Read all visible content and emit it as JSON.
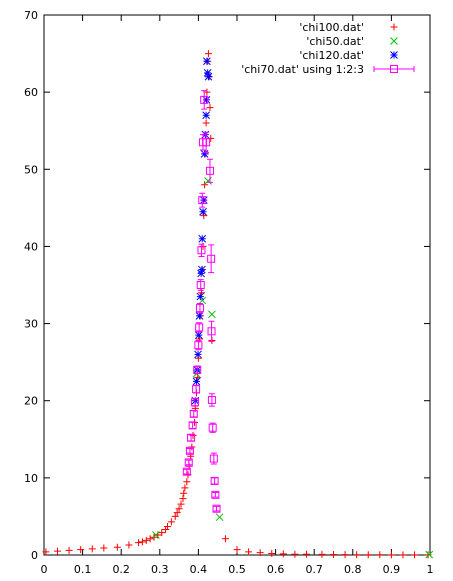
{
  "chart_data": {
    "type": "scatter",
    "xlim": [
      0,
      1
    ],
    "ylim": [
      0,
      70
    ],
    "x_ticks": [
      0,
      0.1,
      0.2,
      0.3,
      0.4,
      0.5,
      0.6,
      0.7,
      0.8,
      0.9,
      1
    ],
    "x_tick_labels": [
      "0",
      "0.1",
      "0.2",
      "0.3",
      "0.4",
      "0.5",
      "0.6",
      "0.7",
      "0.8",
      "0.9",
      "1"
    ],
    "y_ticks": [
      0,
      10,
      20,
      30,
      40,
      50,
      60,
      70
    ],
    "y_tick_labels": [
      "0",
      "10",
      "20",
      "30",
      "40",
      "50",
      "60",
      "70"
    ],
    "grid": false,
    "legend_position": "top-right",
    "series": [
      {
        "name": "'chi100.dat'",
        "marker": "plus",
        "color": "#ff0000",
        "points": [
          [
            0.005,
            0.4
          ],
          [
            0.035,
            0.5
          ],
          [
            0.065,
            0.6
          ],
          [
            0.095,
            0.7
          ],
          [
            0.125,
            0.8
          ],
          [
            0.155,
            0.9
          ],
          [
            0.19,
            1.0
          ],
          [
            0.22,
            1.3
          ],
          [
            0.245,
            1.6
          ],
          [
            0.255,
            1.7
          ],
          [
            0.265,
            1.9
          ],
          [
            0.275,
            2.1
          ],
          [
            0.285,
            2.3
          ],
          [
            0.295,
            2.6
          ],
          [
            0.305,
            2.9
          ],
          [
            0.315,
            3.3
          ],
          [
            0.32,
            3.7
          ],
          [
            0.33,
            4.3
          ],
          [
            0.34,
            5.0
          ],
          [
            0.345,
            5.5
          ],
          [
            0.35,
            6.0
          ],
          [
            0.355,
            6.6
          ],
          [
            0.36,
            7.3
          ],
          [
            0.362,
            8.0
          ],
          [
            0.365,
            8.7
          ],
          [
            0.37,
            9.5
          ],
          [
            0.373,
            10.4
          ],
          [
            0.376,
            11.5
          ],
          [
            0.38,
            12.8
          ],
          [
            0.383,
            14.0
          ],
          [
            0.386,
            15.5
          ],
          [
            0.39,
            17.2
          ],
          [
            0.392,
            19.0
          ],
          [
            0.395,
            21.0
          ],
          [
            0.398,
            23.0
          ],
          [
            0.4,
            25.5
          ],
          [
            0.403,
            28.0
          ],
          [
            0.405,
            31.0
          ],
          [
            0.408,
            34.0
          ],
          [
            0.41,
            37.0
          ],
          [
            0.412,
            40.0
          ],
          [
            0.414,
            44.0
          ],
          [
            0.416,
            48.0
          ],
          [
            0.418,
            52.0
          ],
          [
            0.42,
            56.0
          ],
          [
            0.422,
            60.0
          ],
          [
            0.424,
            64.0
          ],
          [
            0.426,
            65.0
          ],
          [
            0.428,
            62.0
          ],
          [
            0.43,
            58.0
          ],
          [
            0.432,
            54.0
          ],
          [
            0.435,
            27.8
          ],
          [
            0.47,
            2.1
          ],
          [
            0.5,
            0.7
          ],
          [
            0.53,
            0.4
          ],
          [
            0.56,
            0.3
          ],
          [
            0.59,
            0.2
          ],
          [
            0.62,
            0.15
          ],
          [
            0.65,
            0.1
          ],
          [
            0.68,
            0.1
          ],
          [
            0.72,
            0.08
          ],
          [
            0.75,
            0.06
          ],
          [
            0.78,
            0.05
          ],
          [
            0.81,
            0.04
          ],
          [
            0.84,
            0.03
          ],
          [
            0.87,
            0.03
          ],
          [
            0.9,
            0.02
          ],
          [
            0.93,
            0.02
          ],
          [
            0.96,
            0.02
          ],
          [
            0.995,
            0.01
          ]
        ]
      },
      {
        "name": "'chi50.dat'",
        "marker": "cross",
        "color": "#00c000",
        "points": [
          [
            0.29,
            2.6
          ],
          [
            0.395,
            23.5
          ],
          [
            0.41,
            33.0
          ],
          [
            0.425,
            48.5
          ],
          [
            0.435,
            31.2
          ],
          [
            0.455,
            4.9
          ],
          [
            0.998,
            0.05
          ]
        ]
      },
      {
        "name": "'chi120.dat'",
        "marker": "star",
        "color": "#0000ff",
        "points": [
          [
            0.392,
            20.0
          ],
          [
            0.395,
            22.5
          ],
          [
            0.397,
            24.0
          ],
          [
            0.399,
            26.0
          ],
          [
            0.401,
            28.5
          ],
          [
            0.403,
            31.0
          ],
          [
            0.405,
            33.5
          ],
          [
            0.407,
            36.5
          ],
          [
            0.409,
            37.0
          ],
          [
            0.41,
            41.0
          ],
          [
            0.412,
            44.5
          ],
          [
            0.414,
            46.0
          ],
          [
            0.416,
            52.0
          ],
          [
            0.418,
            54.5
          ],
          [
            0.42,
            57.0
          ],
          [
            0.421,
            59.0
          ],
          [
            0.422,
            64.0
          ],
          [
            0.424,
            62.5
          ],
          [
            0.426,
            62.0
          ]
        ]
      },
      {
        "name": "'chi70.dat' using 1:2:3",
        "marker": "box-errorbar",
        "color": "#ff00ff",
        "points": [
          [
            0.37,
            10.8,
            0.3
          ],
          [
            0.375,
            12.0,
            0.3
          ],
          [
            0.378,
            13.5,
            0.3
          ],
          [
            0.381,
            15.2,
            0.4
          ],
          [
            0.385,
            16.8,
            0.4
          ],
          [
            0.388,
            18.3,
            0.4
          ],
          [
            0.391,
            19.8,
            0.5
          ],
          [
            0.394,
            21.5,
            0.5
          ],
          [
            0.397,
            24.0,
            0.5
          ],
          [
            0.4,
            27.2,
            0.6
          ],
          [
            0.402,
            29.5,
            0.6
          ],
          [
            0.404,
            32.0,
            0.6
          ],
          [
            0.406,
            35.0,
            0.7
          ],
          [
            0.408,
            39.5,
            0.8
          ],
          [
            0.41,
            46.0,
            0.9
          ],
          [
            0.412,
            53.5,
            1.0
          ],
          [
            0.415,
            59.0,
            1.2
          ],
          [
            0.42,
            53.5,
            1.3
          ],
          [
            0.43,
            49.8,
            1.5
          ],
          [
            0.433,
            38.4,
            1.8
          ],
          [
            0.434,
            29.0,
            1.3
          ],
          [
            0.435,
            20.1,
            0.8
          ],
          [
            0.437,
            16.5,
            0.6
          ],
          [
            0.44,
            12.5,
            0.7
          ],
          [
            0.442,
            9.6,
            0.4
          ],
          [
            0.444,
            7.8,
            0.3
          ],
          [
            0.447,
            6.0,
            0.3
          ]
        ]
      }
    ]
  }
}
